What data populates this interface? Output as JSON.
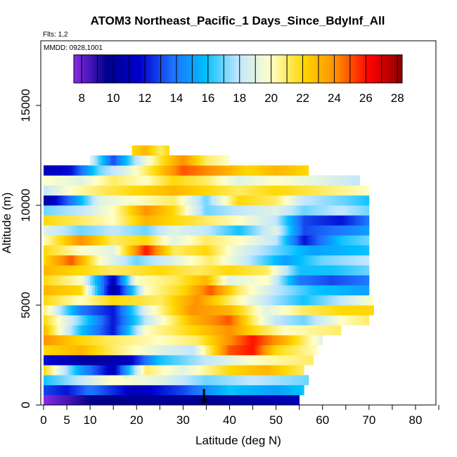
{
  "chart_data": {
    "type": "heatmap",
    "title": "ATOM3 Northeast_Pacific_1 Days_Since_BdyInf_All",
    "subtitle_flights": "Flts: 1,2",
    "subtitle_dates": "MMDD: 0928,1001",
    "xlabel": "Latitude (deg N)",
    "ylabel": "Altitude (m)",
    "xlim": [
      0,
      85
    ],
    "ylim": [
      0,
      18000
    ],
    "xticks": [
      0,
      5,
      10,
      20,
      30,
      40,
      50,
      60,
      70,
      80
    ],
    "xtick_labels": [
      "0",
      "5",
      "10",
      "20",
      "30",
      "40",
      "50",
      "60",
      "70",
      "80"
    ],
    "yticks": [
      0,
      5000,
      10000,
      15000
    ],
    "ytick_labels": [
      "0",
      "5000",
      "10000",
      "15000"
    ],
    "colorbar": {
      "range": [
        7.5,
        28.3
      ],
      "ticks": [
        8,
        10,
        12,
        14,
        16,
        18,
        20,
        22,
        24,
        26,
        28
      ],
      "tick_labels": [
        "8",
        "10",
        "12",
        "14",
        "16",
        "18",
        "20",
        "22",
        "24",
        "26",
        "28"
      ],
      "palette": [
        "#8a2be2",
        "#00008b",
        "#0000cd",
        "#1e6fff",
        "#00bfff",
        "#bfe6ff",
        "#ffffc8",
        "#ffd700",
        "#ff8c00",
        "#ff0000",
        "#8b0000"
      ]
    },
    "marker": {
      "latitude": 34.5,
      "altitude_from": 0,
      "altitude_to": 800
    },
    "layers": [
      {
        "alt_bot": 0,
        "alt_top": 500,
        "lat_start": 0,
        "lat_end": 55,
        "points": [
          [
            0,
            7.5
          ],
          [
            5,
            8.5
          ],
          [
            10,
            9.5
          ],
          [
            25,
            10
          ],
          [
            35,
            9.8
          ],
          [
            45,
            10.5
          ],
          [
            55,
            11
          ]
        ]
      },
      {
        "alt_bot": 500,
        "alt_top": 1000,
        "lat_start": 0,
        "lat_end": 56,
        "points": [
          [
            0,
            13
          ],
          [
            5,
            12
          ],
          [
            10,
            14
          ],
          [
            20,
            11
          ],
          [
            30,
            13
          ],
          [
            40,
            16
          ],
          [
            50,
            15
          ],
          [
            56,
            16
          ]
        ]
      },
      {
        "alt_bot": 1000,
        "alt_top": 1500,
        "lat_start": 0,
        "lat_end": 57,
        "points": [
          [
            0,
            16
          ],
          [
            8,
            18
          ],
          [
            15,
            20
          ],
          [
            25,
            19
          ],
          [
            35,
            17
          ],
          [
            45,
            18
          ],
          [
            57,
            17
          ]
        ]
      },
      {
        "alt_bot": 1500,
        "alt_top": 2000,
        "lat_start": 0,
        "lat_end": 56,
        "points": [
          [
            0,
            22
          ],
          [
            8,
            15
          ],
          [
            15,
            11
          ],
          [
            22,
            21
          ],
          [
            30,
            19
          ],
          [
            40,
            22
          ],
          [
            48,
            23
          ],
          [
            56,
            21
          ]
        ]
      },
      {
        "alt_bot": 2000,
        "alt_top": 2500,
        "lat_start": 0,
        "lat_end": 58,
        "points": [
          [
            0,
            12
          ],
          [
            10,
            10
          ],
          [
            18,
            11
          ],
          [
            25,
            16
          ],
          [
            35,
            18
          ],
          [
            45,
            20
          ],
          [
            58,
            21
          ]
        ]
      },
      {
        "alt_bot": 2500,
        "alt_top": 3000,
        "lat_start": 0,
        "lat_end": 59,
        "points": [
          [
            0,
            22
          ],
          [
            8,
            23
          ],
          [
            15,
            21
          ],
          [
            25,
            19
          ],
          [
            32,
            18
          ],
          [
            40,
            25
          ],
          [
            45,
            26
          ],
          [
            50,
            22
          ],
          [
            59,
            20
          ]
        ]
      },
      {
        "alt_bot": 3000,
        "alt_top": 3500,
        "lat_start": 0,
        "lat_end": 60,
        "points": [
          [
            0,
            24
          ],
          [
            8,
            22
          ],
          [
            15,
            21
          ],
          [
            25,
            20
          ],
          [
            33,
            21
          ],
          [
            40,
            24
          ],
          [
            45,
            26
          ],
          [
            52,
            23
          ],
          [
            60,
            19
          ]
        ]
      },
      {
        "alt_bot": 3500,
        "alt_top": 4000,
        "lat_start": 0,
        "lat_end": 64,
        "points": [
          [
            0,
            23
          ],
          [
            8,
            16
          ],
          [
            15,
            12
          ],
          [
            22,
            20
          ],
          [
            32,
            22
          ],
          [
            40,
            24
          ],
          [
            45,
            22
          ],
          [
            52,
            20
          ],
          [
            64,
            21
          ]
        ]
      },
      {
        "alt_bot": 4000,
        "alt_top": 4500,
        "lat_start": 0,
        "lat_end": 70,
        "points": [
          [
            0,
            22
          ],
          [
            8,
            17
          ],
          [
            15,
            12
          ],
          [
            22,
            18
          ],
          [
            32,
            23
          ],
          [
            40,
            25
          ],
          [
            45,
            21
          ],
          [
            50,
            18
          ],
          [
            56,
            17
          ],
          [
            64,
            20
          ],
          [
            70,
            21
          ]
        ]
      },
      {
        "alt_bot": 4500,
        "alt_top": 5000,
        "lat_start": 0,
        "lat_end": 71,
        "points": [
          [
            0,
            21
          ],
          [
            8,
            14
          ],
          [
            15,
            12
          ],
          [
            22,
            19
          ],
          [
            32,
            24
          ],
          [
            40,
            23
          ],
          [
            48,
            19
          ],
          [
            56,
            21
          ],
          [
            64,
            22
          ],
          [
            71,
            22
          ]
        ]
      },
      {
        "alt_bot": 5000,
        "alt_top": 5500,
        "lat_start": 0,
        "lat_end": 71,
        "points": [
          [
            0,
            22
          ],
          [
            8,
            20
          ],
          [
            15,
            22
          ],
          [
            25,
            21
          ],
          [
            33,
            24
          ],
          [
            40,
            21
          ],
          [
            48,
            18
          ],
          [
            56,
            16
          ],
          [
            64,
            18
          ],
          [
            71,
            20
          ]
        ]
      },
      {
        "alt_bot": 5500,
        "alt_top": 6000,
        "lat_start": 0,
        "lat_end": 70,
        "points": [
          [
            0,
            23
          ],
          [
            8,
            22
          ],
          [
            15,
            10
          ],
          [
            22,
            20
          ],
          [
            30,
            22
          ],
          [
            36,
            25
          ],
          [
            42,
            21
          ],
          [
            50,
            18
          ],
          [
            58,
            16
          ],
          [
            70,
            15
          ]
        ]
      },
      {
        "alt_bot": 6000,
        "alt_top": 6500,
        "lat_start": 0,
        "lat_end": 70,
        "points": [
          [
            0,
            22
          ],
          [
            8,
            20
          ],
          [
            15,
            11
          ],
          [
            20,
            20
          ],
          [
            28,
            21
          ],
          [
            35,
            23
          ],
          [
            40,
            19
          ],
          [
            48,
            20
          ],
          [
            55,
            14
          ],
          [
            62,
            13
          ],
          [
            70,
            14
          ]
        ]
      },
      {
        "alt_bot": 6500,
        "alt_top": 7000,
        "lat_start": 0,
        "lat_end": 70,
        "points": [
          [
            0,
            23
          ],
          [
            8,
            22
          ],
          [
            15,
            21
          ],
          [
            25,
            22
          ],
          [
            33,
            21
          ],
          [
            40,
            22
          ],
          [
            48,
            21
          ],
          [
            55,
            16
          ],
          [
            62,
            16
          ],
          [
            70,
            17
          ]
        ]
      },
      {
        "alt_bot": 7000,
        "alt_top": 7500,
        "lat_start": 0,
        "lat_end": 70,
        "points": [
          [
            0,
            22
          ],
          [
            6,
            25
          ],
          [
            12,
            20
          ],
          [
            20,
            17
          ],
          [
            28,
            19
          ],
          [
            36,
            21
          ],
          [
            44,
            18
          ],
          [
            52,
            15
          ],
          [
            60,
            17
          ],
          [
            70,
            18
          ]
        ]
      },
      {
        "alt_bot": 7500,
        "alt_top": 8000,
        "lat_start": 0,
        "lat_end": 70,
        "points": [
          [
            0,
            22
          ],
          [
            8,
            20
          ],
          [
            15,
            19
          ],
          [
            22,
            26
          ],
          [
            28,
            21
          ],
          [
            35,
            22
          ],
          [
            42,
            19
          ],
          [
            50,
            17
          ],
          [
            58,
            15
          ],
          [
            70,
            16
          ]
        ]
      },
      {
        "alt_bot": 8000,
        "alt_top": 8500,
        "lat_start": 0,
        "lat_end": 70,
        "points": [
          [
            0,
            20
          ],
          [
            8,
            24
          ],
          [
            15,
            21
          ],
          [
            22,
            22
          ],
          [
            28,
            19
          ],
          [
            35,
            21
          ],
          [
            42,
            20
          ],
          [
            50,
            18
          ],
          [
            56,
            12
          ],
          [
            64,
            16
          ],
          [
            70,
            17
          ]
        ]
      },
      {
        "alt_bot": 8500,
        "alt_top": 9000,
        "lat_start": 0,
        "lat_end": 70,
        "points": [
          [
            0,
            19
          ],
          [
            8,
            17
          ],
          [
            15,
            18
          ],
          [
            22,
            17
          ],
          [
            28,
            19
          ],
          [
            35,
            18
          ],
          [
            42,
            16
          ],
          [
            50,
            19
          ],
          [
            56,
            13
          ],
          [
            64,
            14
          ],
          [
            70,
            15
          ]
        ]
      },
      {
        "alt_bot": 9000,
        "alt_top": 9500,
        "lat_start": 0,
        "lat_end": 70,
        "points": [
          [
            0,
            22
          ],
          [
            8,
            21
          ],
          [
            15,
            20
          ],
          [
            22,
            23
          ],
          [
            28,
            22
          ],
          [
            35,
            21
          ],
          [
            42,
            20
          ],
          [
            50,
            18
          ],
          [
            56,
            13
          ],
          [
            64,
            12
          ],
          [
            70,
            14
          ]
        ]
      },
      {
        "alt_bot": 9500,
        "alt_top": 10000,
        "lat_start": 0,
        "lat_end": 70,
        "points": [
          [
            0,
            17
          ],
          [
            8,
            18
          ],
          [
            15,
            20
          ],
          [
            22,
            24
          ],
          [
            28,
            22
          ],
          [
            35,
            17
          ],
          [
            42,
            18
          ],
          [
            50,
            19
          ],
          [
            56,
            17
          ],
          [
            64,
            18
          ],
          [
            70,
            17
          ]
        ]
      },
      {
        "alt_bot": 10000,
        "alt_top": 10500,
        "lat_start": 0,
        "lat_end": 70,
        "points": [
          [
            0,
            10
          ],
          [
            6,
            14
          ],
          [
            12,
            19
          ],
          [
            20,
            20
          ],
          [
            28,
            21
          ],
          [
            35,
            17
          ],
          [
            42,
            22
          ],
          [
            50,
            21
          ],
          [
            56,
            18
          ],
          [
            64,
            17
          ],
          [
            70,
            16
          ]
        ]
      },
      {
        "alt_bot": 10500,
        "alt_top": 11000,
        "lat_start": 0,
        "lat_end": 70,
        "points": [
          [
            0,
            18
          ],
          [
            6,
            20
          ],
          [
            12,
            21
          ],
          [
            20,
            22
          ],
          [
            28,
            23
          ],
          [
            35,
            22
          ],
          [
            42,
            21
          ],
          [
            50,
            22
          ],
          [
            60,
            21
          ],
          [
            70,
            20
          ]
        ]
      },
      {
        "alt_bot": 11000,
        "alt_top": 11500,
        "lat_start": 0,
        "lat_end": 68,
        "points": [
          [
            0,
            20
          ],
          [
            8,
            19
          ],
          [
            15,
            21
          ],
          [
            22,
            20
          ],
          [
            28,
            22
          ],
          [
            35,
            21
          ],
          [
            42,
            19
          ],
          [
            50,
            20
          ],
          [
            60,
            19
          ],
          [
            68,
            18
          ]
        ]
      },
      {
        "alt_bot": 11500,
        "alt_top": 12000,
        "lat_start": 0,
        "lat_end": 57,
        "points": [
          [
            0,
            11
          ],
          [
            6,
            12
          ],
          [
            12,
            17
          ],
          [
            18,
            19
          ],
          [
            24,
            22
          ],
          [
            30,
            25
          ],
          [
            36,
            24
          ],
          [
            44,
            22
          ],
          [
            50,
            23
          ],
          [
            57,
            22
          ]
        ]
      },
      {
        "alt_bot": 12000,
        "alt_top": 12500,
        "lat_start": 10,
        "lat_end": 40,
        "points": [
          [
            10,
            19
          ],
          [
            15,
            13
          ],
          [
            20,
            18
          ],
          [
            26,
            22
          ],
          [
            30,
            24
          ],
          [
            35,
            21
          ],
          [
            40,
            20
          ]
        ]
      },
      {
        "alt_bot": 12500,
        "alt_top": 13000,
        "lat_start": 19,
        "lat_end": 27,
        "points": [
          [
            19,
            22
          ],
          [
            22,
            23
          ],
          [
            25,
            21
          ],
          [
            27,
            22
          ]
        ]
      }
    ]
  }
}
